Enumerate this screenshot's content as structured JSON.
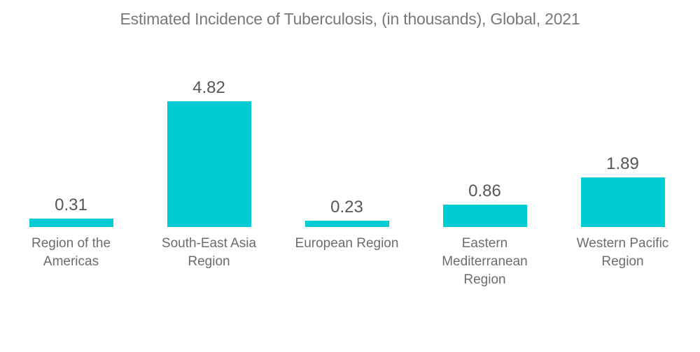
{
  "header": {
    "title": "Estimated Incidence of Tuberculosis, (in thousands), Global, 2021"
  },
  "chart_data": {
    "type": "bar",
    "title": "Estimated Incidence of Tuberculosis, (in thousands), Global, 2021",
    "categories": [
      "Region of the Americas",
      "South-East Asia Region",
      "European Region",
      "Eastern Mediterranean Region",
      "Western Pacific Region"
    ],
    "values": [
      0.31,
      4.82,
      0.23,
      0.86,
      1.89
    ],
    "value_labels": [
      "0.31",
      "4.82",
      "0.23",
      "0.86",
      "1.89"
    ],
    "xlabel": "",
    "ylabel": "",
    "ylim": [
      0,
      5
    ],
    "grid": false,
    "legend": false,
    "bar_color": "#02ccd3",
    "title_color": "#77787a",
    "value_label_color": "#54575a",
    "category_label_color": "#6a6c6e",
    "background_color": "#ffffff"
  }
}
